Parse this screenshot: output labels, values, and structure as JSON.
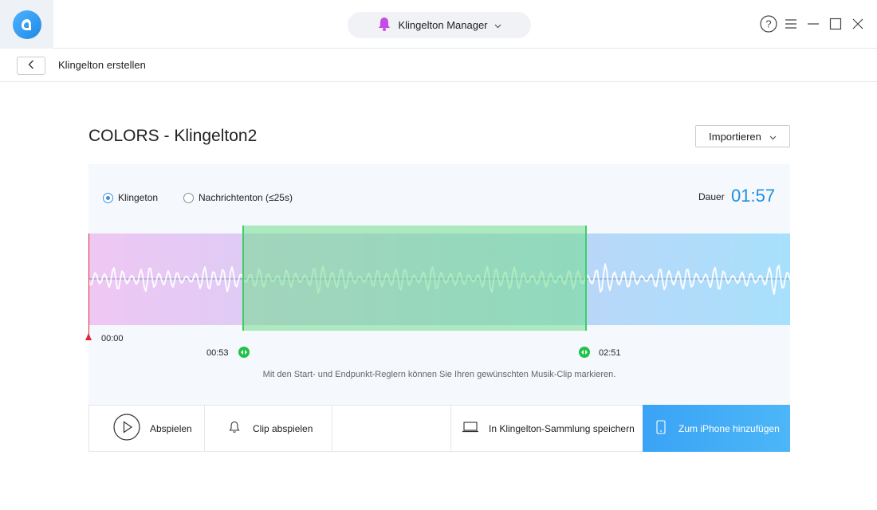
{
  "header": {
    "device_selector_label": "Klingelton Manager",
    "icons": {
      "logo": "app-logo-icon",
      "bell": "bell-icon",
      "help": "help-icon",
      "menu": "menu-icon",
      "minimize": "minimize-icon",
      "maximize": "maximize-icon",
      "close": "close-icon"
    }
  },
  "subbar": {
    "title": "Klingelton erstellen"
  },
  "main": {
    "title": "COLORS - Klingelton2",
    "import_label": "Importieren",
    "options": [
      {
        "label": "Klingeton",
        "checked": true
      },
      {
        "label": "Nachrichtenton (≤25s)",
        "checked": false
      }
    ],
    "duration_label": "Dauer",
    "duration_value": "01:57",
    "playhead_time": "00:00",
    "start_time": "00:53",
    "end_time": "02:51",
    "hint": "Mit den Start- und Endpunkt-Reglern können Sie Ihren gewünschten Musik-Clip markieren."
  },
  "actions": {
    "play": "Abspielen",
    "play_clip": "Clip abspielen",
    "save": "In Klingelton-Sammlung speichern",
    "add_iphone": "Zum iPhone hinzufügen"
  },
  "colors": {
    "accent": "#1e8fe0",
    "selection": "#3ecf63",
    "playhead": "#e0283a",
    "primary_button": "#3aa3f5"
  }
}
